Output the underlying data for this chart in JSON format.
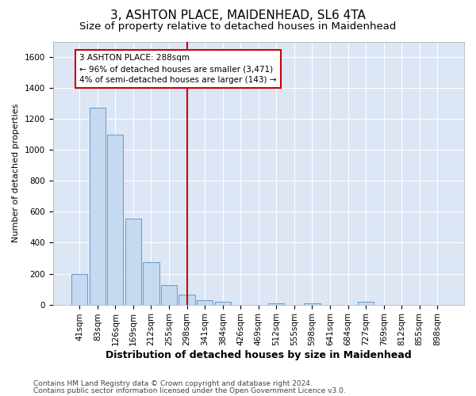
{
  "title1": "3, ASHTON PLACE, MAIDENHEAD, SL6 4TA",
  "title2": "Size of property relative to detached houses in Maidenhead",
  "xlabel": "Distribution of detached houses by size in Maidenhead",
  "ylabel": "Number of detached properties",
  "footnote1": "Contains HM Land Registry data © Crown copyright and database right 2024.",
  "footnote2": "Contains public sector information licensed under the Open Government Licence v3.0.",
  "bar_labels": [
    "41sqm",
    "83sqm",
    "126sqm",
    "169sqm",
    "212sqm",
    "255sqm",
    "298sqm",
    "341sqm",
    "384sqm",
    "426sqm",
    "469sqm",
    "512sqm",
    "555sqm",
    "598sqm",
    "641sqm",
    "684sqm",
    "727sqm",
    "769sqm",
    "812sqm",
    "855sqm",
    "898sqm"
  ],
  "bar_values": [
    200,
    1275,
    1100,
    555,
    275,
    125,
    65,
    30,
    20,
    0,
    0,
    10,
    0,
    10,
    0,
    0,
    20,
    0,
    0,
    0,
    0
  ],
  "bar_color": "#c5d9f0",
  "bar_edge_color": "#6699cc",
  "background_color": "#dce6f5",
  "vline_index": 6,
  "vline_color": "#cc0000",
  "annotation_line1": "3 ASHTON PLACE: 288sqm",
  "annotation_line2": "← 96% of detached houses are smaller (3,471)",
  "annotation_line3": "4% of semi-detached houses are larger (143) →",
  "annotation_box_color": "#cc0000",
  "ylim": [
    0,
    1700
  ],
  "yticks": [
    0,
    200,
    400,
    600,
    800,
    1000,
    1200,
    1400,
    1600
  ],
  "title1_fontsize": 11,
  "title2_fontsize": 9.5,
  "xlabel_fontsize": 9,
  "ylabel_fontsize": 8,
  "tick_fontsize": 7.5,
  "annotation_fontsize": 7.5,
  "footnote_fontsize": 6.5
}
